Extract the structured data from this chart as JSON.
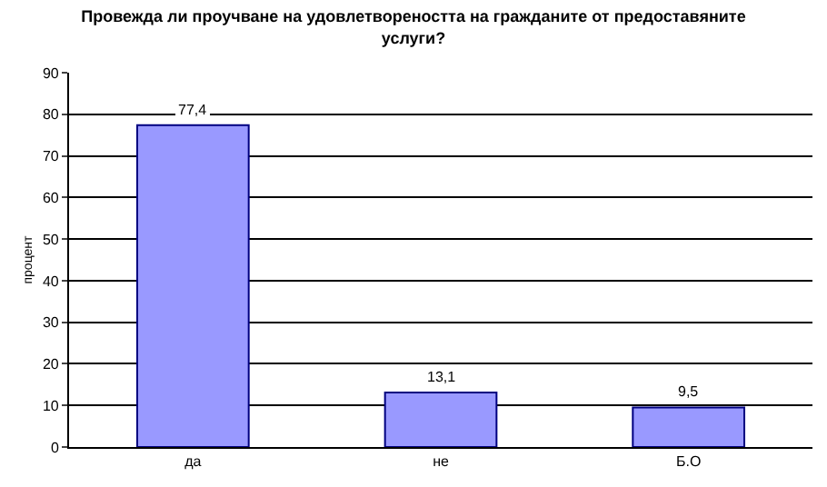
{
  "chart_data": {
    "type": "bar",
    "title": "Провежда ли проучване на удовлетвореността на гражданите от предоставяните услуги?",
    "ylabel": "процент",
    "categories": [
      "да",
      "не",
      "Б.О"
    ],
    "values": [
      77.4,
      13.1,
      9.5
    ],
    "value_labels": [
      "77,4",
      "13,1",
      "9,5"
    ],
    "color": "#9999ff",
    "ylim": [
      0,
      90
    ],
    "yticks": [
      0,
      10,
      20,
      30,
      40,
      50,
      60,
      70,
      80,
      90
    ],
    "grid": "y",
    "legend": false
  }
}
